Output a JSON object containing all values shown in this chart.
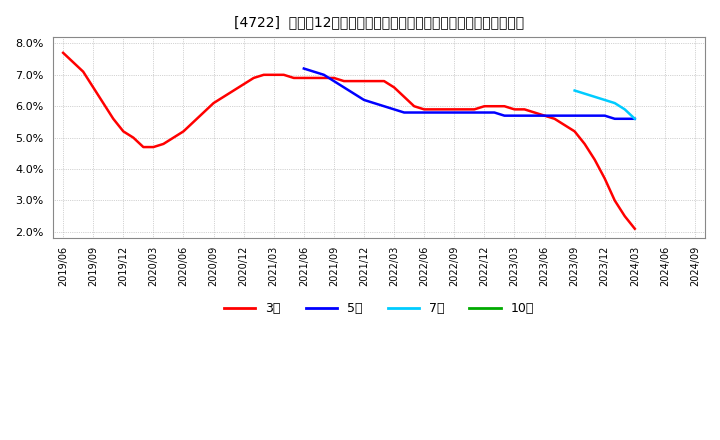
{
  "title": "[4722]  売上高12か月移動合計の対前年同期増減率の標準偏差の推移",
  "ylim": [
    0.018,
    0.082
  ],
  "yticks": [
    0.02,
    0.03,
    0.04,
    0.05,
    0.06,
    0.07,
    0.08
  ],
  "background_color": "#ffffff",
  "plot_bg_color": "#ffffff",
  "grid_color": "#aaaaaa",
  "series_3": {
    "color": "#ff0000",
    "x": [
      0,
      1,
      2,
      3,
      4,
      5,
      6,
      7,
      8,
      9,
      10,
      11,
      12,
      13,
      14,
      15,
      16,
      17,
      18,
      19,
      20,
      21,
      22,
      23,
      24,
      25,
      26,
      27,
      28,
      29,
      30,
      31,
      32,
      33,
      34,
      35,
      36,
      37,
      38,
      39,
      40,
      41,
      42,
      43,
      44,
      45,
      46,
      47,
      48,
      49,
      50,
      51,
      52,
      53,
      54,
      55,
      56,
      57
    ],
    "y": [
      0.077,
      0.074,
      0.071,
      0.066,
      0.061,
      0.056,
      0.052,
      0.05,
      0.047,
      0.047,
      0.048,
      0.05,
      0.052,
      0.055,
      0.058,
      0.061,
      0.063,
      0.065,
      0.067,
      0.069,
      0.07,
      0.07,
      0.07,
      0.069,
      0.069,
      0.069,
      0.069,
      0.069,
      0.068,
      0.068,
      0.068,
      0.068,
      0.068,
      0.066,
      0.063,
      0.06,
      0.059,
      0.059,
      0.059,
      0.059,
      0.059,
      0.059,
      0.06,
      0.06,
      0.06,
      0.059,
      0.059,
      0.058,
      0.057,
      0.056,
      0.054,
      0.052,
      0.048,
      0.043,
      0.037,
      0.03,
      0.025,
      0.021
    ]
  },
  "series_5": {
    "color": "#0000ff",
    "x": [
      24,
      25,
      26,
      27,
      28,
      29,
      30,
      31,
      32,
      33,
      34,
      35,
      36,
      37,
      38,
      39,
      40,
      41,
      42,
      43,
      44,
      45,
      46,
      47,
      48,
      49,
      50,
      51,
      52,
      53,
      54,
      55,
      56,
      57
    ],
    "y": [
      0.072,
      0.071,
      0.07,
      0.068,
      0.066,
      0.064,
      0.062,
      0.061,
      0.06,
      0.059,
      0.058,
      0.058,
      0.058,
      0.058,
      0.058,
      0.058,
      0.058,
      0.058,
      0.058,
      0.058,
      0.057,
      0.057,
      0.057,
      0.057,
      0.057,
      0.057,
      0.057,
      0.057,
      0.057,
      0.057,
      0.057,
      0.056,
      0.056,
      0.056
    ]
  },
  "series_7": {
    "color": "#00ccff",
    "x": [
      51,
      52,
      53,
      54,
      55,
      56,
      57
    ],
    "y": [
      0.065,
      0.064,
      0.063,
      0.062,
      0.061,
      0.059,
      0.056
    ]
  },
  "series_10": {
    "color": "#00aa00",
    "x": [],
    "y": []
  },
  "legend_labels": [
    "3年",
    "5年",
    "7年",
    "10年"
  ],
  "legend_colors": [
    "#ff0000",
    "#0000ff",
    "#00ccff",
    "#00aa00"
  ],
  "xtick_labels": [
    "2019/06",
    "2019/09",
    "2019/12",
    "2020/03",
    "2020/06",
    "2020/09",
    "2020/12",
    "2021/03",
    "2021/06",
    "2021/09",
    "2021/12",
    "2022/03",
    "2022/06",
    "2022/09",
    "2022/12",
    "2023/03",
    "2023/06",
    "2023/09",
    "2023/12",
    "2024/03",
    "2024/06",
    "2024/09"
  ],
  "xtick_positions": [
    0,
    3,
    6,
    9,
    12,
    15,
    18,
    21,
    24,
    27,
    30,
    33,
    36,
    39,
    42,
    45,
    48,
    51,
    54,
    57,
    60,
    63
  ],
  "xlim": [
    -1,
    64
  ]
}
